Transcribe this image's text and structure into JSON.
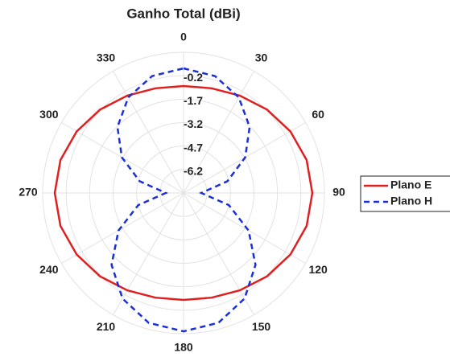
{
  "chart_data": {
    "type": "polar",
    "title": "Ganho Total (dBi)",
    "theta": [
      0,
      15,
      30,
      45,
      60,
      75,
      90,
      105,
      120,
      135,
      150,
      165,
      180,
      195,
      210,
      225,
      240,
      255,
      270,
      285,
      300,
      315,
      330,
      345
    ],
    "thetaticks": [
      0,
      30,
      60,
      90,
      120,
      150,
      180,
      210,
      240,
      270,
      300,
      330
    ],
    "rlim": [
      -7.7,
      1.3
    ],
    "rticks": [
      -6.2,
      -4.7,
      -3.2,
      -1.7,
      -0.2
    ],
    "direction": "clockwise",
    "zero": "top",
    "grid": true,
    "legend": "right",
    "series": [
      {
        "name": "Plano E",
        "color": "#e02020",
        "dash": false,
        "values": [
          -0.86,
          -0.77,
          -0.51,
          -0.16,
          0.18,
          0.44,
          0.53,
          0.44,
          0.18,
          -0.16,
          -0.51,
          -0.77,
          -0.86,
          -0.77,
          -0.51,
          -0.16,
          0.18,
          0.44,
          0.53,
          0.44,
          0.18,
          -0.16,
          -0.51,
          -0.77
        ]
      },
      {
        "name": "Plano H",
        "color": "#1a2fd6",
        "dash": true,
        "values": [
          0.27,
          0.04,
          -0.64,
          -1.73,
          -3.15,
          -4.8,
          -6.57,
          -4.7,
          -2.9,
          -1.2,
          0.1,
          0.9,
          1.15,
          0.9,
          0.1,
          -1.2,
          -2.9,
          -4.7,
          -6.57,
          -4.8,
          -3.15,
          -1.73,
          -0.64,
          0.04
        ]
      }
    ]
  }
}
